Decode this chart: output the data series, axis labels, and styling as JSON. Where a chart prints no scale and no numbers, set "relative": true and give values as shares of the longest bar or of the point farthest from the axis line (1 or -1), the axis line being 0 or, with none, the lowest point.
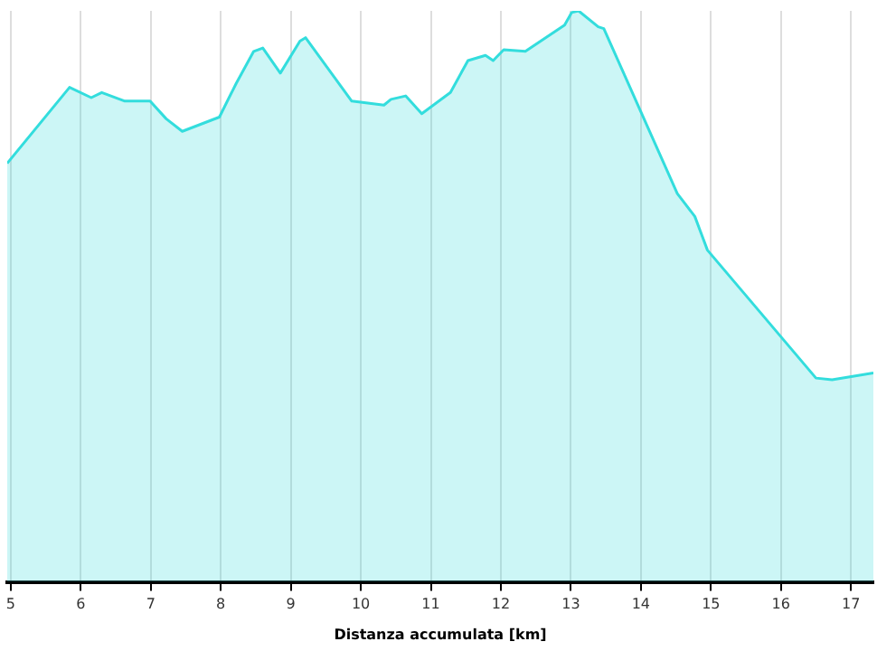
{
  "chart_data": {
    "type": "area",
    "relative": true,
    "xlabel": "Distanza accumulata [km]",
    "x": [
      4.95,
      5.84,
      6.15,
      6.3,
      6.63,
      6.99,
      7.22,
      7.45,
      7.98,
      8.22,
      8.47,
      8.6,
      8.85,
      9.13,
      9.21,
      9.87,
      10.33,
      10.43,
      10.64,
      10.87,
      11.28,
      11.53,
      11.78,
      11.89,
      12.04,
      12.35,
      12.91,
      13.01,
      13.11,
      13.39,
      13.47,
      14.52,
      14.77,
      14.95,
      16.5,
      16.73,
      17.32
    ],
    "series": [
      {
        "color": "#33dddd",
        "values": [
          0.733,
          0.866,
          0.848,
          0.857,
          0.842,
          0.842,
          0.811,
          0.789,
          0.814,
          0.873,
          0.929,
          0.935,
          0.891,
          0.947,
          0.953,
          0.842,
          0.835,
          0.845,
          0.851,
          0.82,
          0.857,
          0.913,
          0.922,
          0.913,
          0.932,
          0.929,
          0.975,
          0.997,
          1.0,
          0.972,
          0.969,
          0.68,
          0.64,
          0.581,
          0.357,
          0.354,
          0.366
        ]
      }
    ],
    "xlim": [
      4.95,
      17.32
    ],
    "xticks": [
      5,
      6,
      7,
      8,
      9,
      10,
      11,
      12,
      13,
      14,
      15,
      16,
      17
    ],
    "grid": "x",
    "marker": "none",
    "line_style": "solid"
  }
}
